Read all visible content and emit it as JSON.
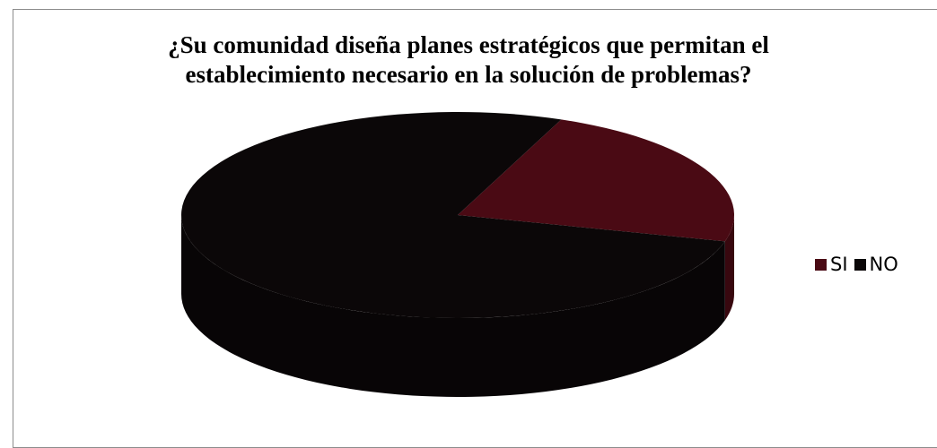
{
  "chart_data": {
    "type": "pie",
    "style": "3d",
    "title": "¿Su comunidad diseña planes estratégicos que permitan el establecimiento necesario en la solución de problemas?",
    "title_lines": [
      "¿Su comunidad diseña planes estratégicos que permitan el",
      "establecimiento necesario en la solución de problemas?"
    ],
    "categories": [
      "SI",
      "NO"
    ],
    "values": [
      23,
      77
    ],
    "colors": [
      "#4a0a14",
      "#0b0708"
    ],
    "legend_position": "right"
  }
}
